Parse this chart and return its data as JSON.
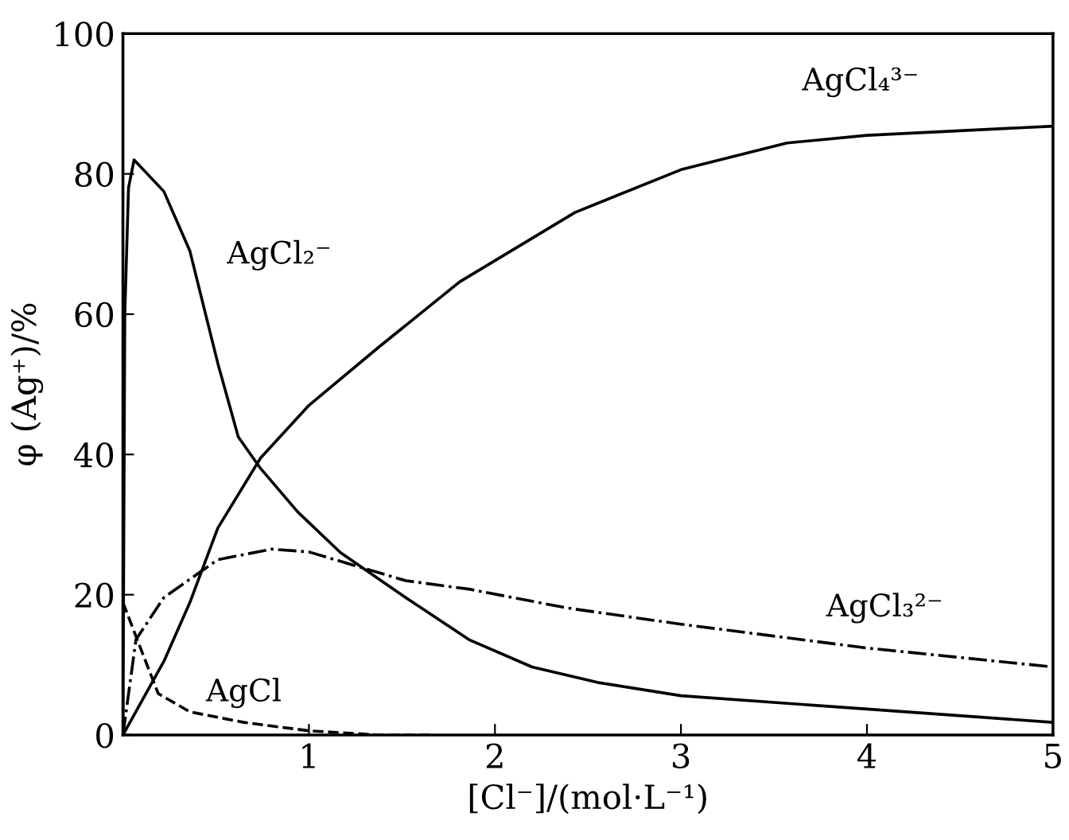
{
  "chart_data": {
    "type": "line",
    "xlabel": "[Cl⁻]/(mol·L⁻¹)",
    "ylabel": "φ (Ag⁺)/%",
    "xlim": [
      0,
      5
    ],
    "ylim": [
      0,
      100
    ],
    "xticks": [
      1,
      2,
      3,
      4,
      5
    ],
    "yticks": [
      0,
      20,
      40,
      60,
      80,
      100
    ],
    "grid": false,
    "legend": false,
    "marker": "none",
    "series": [
      {
        "color": "#000000",
        "line_style": "solid",
        "x": [
          0,
          0.01,
          0.03,
          0.06,
          0.22,
          0.36,
          0.51,
          0.62,
          0.74,
          0.94,
          1.17,
          1.52,
          1.86,
          2.2,
          2.55,
          3.0,
          4.0,
          5.0
        ],
        "values": [
          0,
          60,
          78,
          82,
          77.5,
          69,
          53,
          42.5,
          38,
          31.8,
          26,
          19.6,
          13.6,
          9.7,
          7.5,
          5.6,
          3.7,
          1.8
        ]
      },
      {
        "color": "#000000",
        "line_style": "solid",
        "x": [
          0,
          0.22,
          0.36,
          0.51,
          0.74,
          1.0,
          1.38,
          1.81,
          2.43,
          3.0,
          3.57,
          4.0,
          5.0
        ],
        "values": [
          0,
          10.5,
          18.9,
          29.5,
          39.5,
          47,
          55.4,
          64.6,
          74.5,
          80.6,
          84.4,
          85.5,
          86.8
        ]
      },
      {
        "color": "#000000",
        "line_style": "dashdot",
        "x": [
          0,
          0.07,
          0.22,
          0.51,
          0.8,
          1.0,
          1.52,
          1.86,
          2.39,
          3.0,
          4.0,
          5.0
        ],
        "values": [
          0,
          13.6,
          19.6,
          25,
          26.5,
          26.1,
          22,
          20.8,
          18.1,
          15.8,
          12.4,
          9.7
        ]
      },
      {
        "color": "#000000",
        "line_style": "dashed",
        "x": [
          0,
          0.1,
          0.19,
          0.36,
          0.65,
          1.0,
          1.38,
          1.67
        ],
        "values": [
          18.9,
          12,
          5.9,
          3.3,
          1.8,
          0.6,
          0,
          0
        ]
      }
    ],
    "annotations": [
      "AgCl₂⁻",
      "AgCl₄³⁻",
      "AgCl₃²⁻",
      "AgCl"
    ]
  }
}
